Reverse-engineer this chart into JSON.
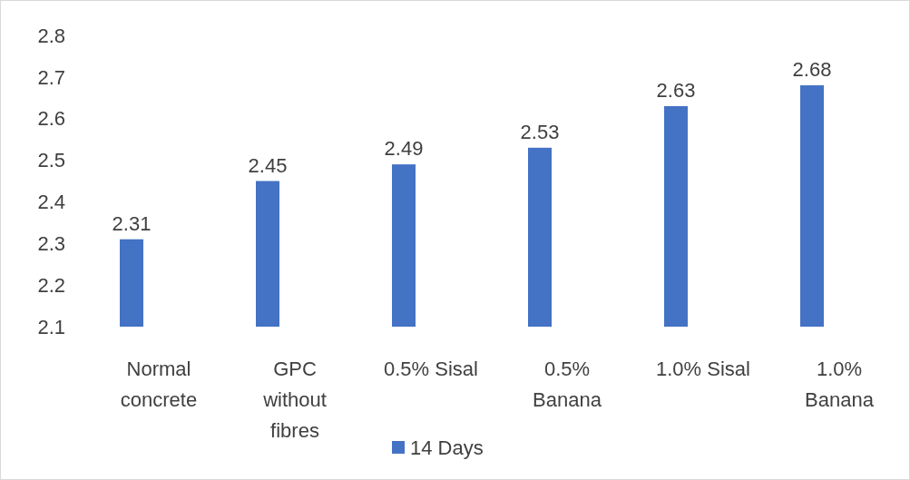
{
  "chart_data": {
    "type": "bar",
    "categories": [
      "Normal concrete",
      "GPC without fibres",
      "0.5% Sisal",
      "0.5% Banana",
      "1.0% Sisal",
      "1.0% Banana"
    ],
    "series": [
      {
        "name": "14 Days",
        "color": "#4472c4",
        "values": [
          2.31,
          2.45,
          2.49,
          2.53,
          2.63,
          2.68
        ]
      }
    ],
    "ylim": [
      2.1,
      2.8
    ],
    "yticks": [
      2.1,
      2.2,
      2.3,
      2.4,
      2.5,
      2.6,
      2.7,
      2.8
    ],
    "grid": false,
    "legend": "bottom",
    "data_labels": true
  }
}
